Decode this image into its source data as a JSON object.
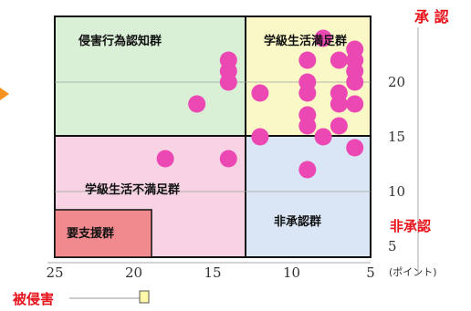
{
  "chart_data": {
    "type": "scatter",
    "title": "",
    "xlabel": "(ポイント)",
    "ylabel": "",
    "xlim": [
      25,
      5
    ],
    "ylim": [
      4,
      26
    ],
    "x_reversed": true,
    "xticks": [
      "25",
      "20",
      "15",
      "10",
      "5"
    ],
    "yticks": [
      "5",
      "10",
      "15",
      "20"
    ],
    "axis_labels": {
      "top_right": "承 認",
      "right_middle": "非承認",
      "bottom_left": "被侵害"
    },
    "quadrants": [
      {
        "name": "侵害行為認知群",
        "color": "#d9efd6"
      },
      {
        "name": "学級生活満足群",
        "color": "#fbf8c7"
      },
      {
        "name": "学級生活不満足群",
        "color": "#f8d3e4"
      },
      {
        "name": "非承認群",
        "color": "#dae6f6"
      },
      {
        "name": "要支援群",
        "color": "#f18a8e"
      }
    ],
    "point_color": "#ec48b4",
    "points": [
      {
        "x": 14,
        "y": 22
      },
      {
        "x": 14,
        "y": 21
      },
      {
        "x": 14,
        "y": 20
      },
      {
        "x": 16,
        "y": 18
      },
      {
        "x": 18,
        "y": 13
      },
      {
        "x": 14,
        "y": 13
      },
      {
        "x": 12,
        "y": 19
      },
      {
        "x": 12,
        "y": 15
      },
      {
        "x": 9,
        "y": 22
      },
      {
        "x": 9,
        "y": 20
      },
      {
        "x": 9,
        "y": 19
      },
      {
        "x": 9,
        "y": 17
      },
      {
        "x": 9,
        "y": 16
      },
      {
        "x": 9,
        "y": 12
      },
      {
        "x": 8,
        "y": 24
      },
      {
        "x": 8,
        "y": 15
      },
      {
        "x": 7,
        "y": 22
      },
      {
        "x": 7,
        "y": 19
      },
      {
        "x": 7,
        "y": 18
      },
      {
        "x": 7,
        "y": 16
      },
      {
        "x": 6,
        "y": 23
      },
      {
        "x": 6,
        "y": 22
      },
      {
        "x": 6,
        "y": 21
      },
      {
        "x": 6,
        "y": 20
      },
      {
        "x": 6,
        "y": 18
      },
      {
        "x": 6,
        "y": 14
      }
    ]
  }
}
